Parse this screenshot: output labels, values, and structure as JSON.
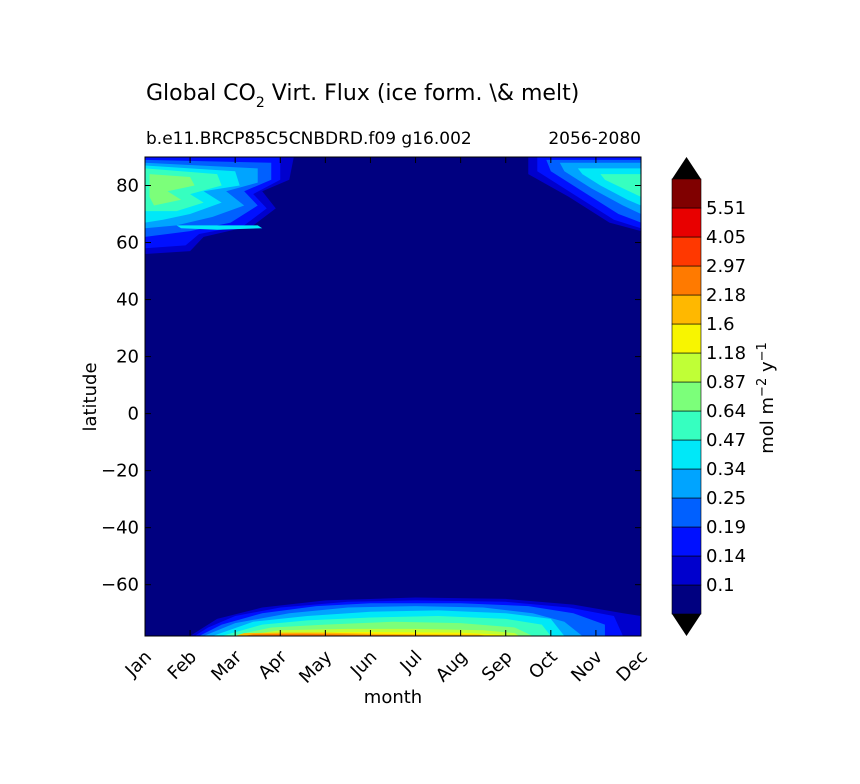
{
  "chart_data": {
    "type": "heatmap",
    "title": "Global CO",
    "title_sub": "2",
    "title_rest": " Virt. Flux (ice form. \\& melt)",
    "subtitle_left": "b.e11.BRCP85C5CNBDRD.f09 g16.002",
    "subtitle_right": "2056-2080",
    "xlabel": "month",
    "ylabel": "latitude",
    "x_categories": [
      "Jan",
      "Feb",
      "Mar",
      "Apr",
      "May",
      "Jun",
      "Jul",
      "Aug",
      "Sep",
      "Oct",
      "Nov",
      "Dec"
    ],
    "ylim": [
      -78,
      90
    ],
    "y_ticks": [
      "80",
      "60",
      "40",
      "20",
      "0",
      "−20",
      "−40",
      "−60"
    ],
    "y_tick_values": [
      80,
      60,
      40,
      20,
      0,
      -20,
      -40,
      -60
    ],
    "colorbar": {
      "label": "mol m",
      "label_sup1": "−2",
      "label_mid": " y",
      "label_sup2": "−1",
      "levels": [
        "5.51",
        "4.05",
        "2.97",
        "2.18",
        "1.6",
        "1.18",
        "0.87",
        "0.64",
        "0.47",
        "0.34",
        "0.25",
        "0.19",
        "0.14",
        "0.1"
      ],
      "colors": [
        "#000080",
        "#0000cd",
        "#0010ff",
        "#0060ff",
        "#00a4ff",
        "#00e8f8",
        "#36ffc0",
        "#7cff7a",
        "#c0ff36",
        "#f8f500",
        "#ffb800",
        "#ff7a00",
        "#ff3800",
        "#e80000",
        "#800000"
      ],
      "extend": "both"
    },
    "description_regions": [
      {
        "region": "arctic-winter-spring",
        "months": [
          "Jan",
          "Apr"
        ],
        "lat": [
          56,
          90
        ]
      },
      {
        "region": "arctic-autumn",
        "months": [
          "Oct",
          "Dec"
        ],
        "lat": [
          64,
          90
        ]
      },
      {
        "region": "antarctic",
        "months": [
          "Feb",
          "Dec"
        ],
        "lat": [
          -78,
          -64
        ]
      }
    ]
  }
}
